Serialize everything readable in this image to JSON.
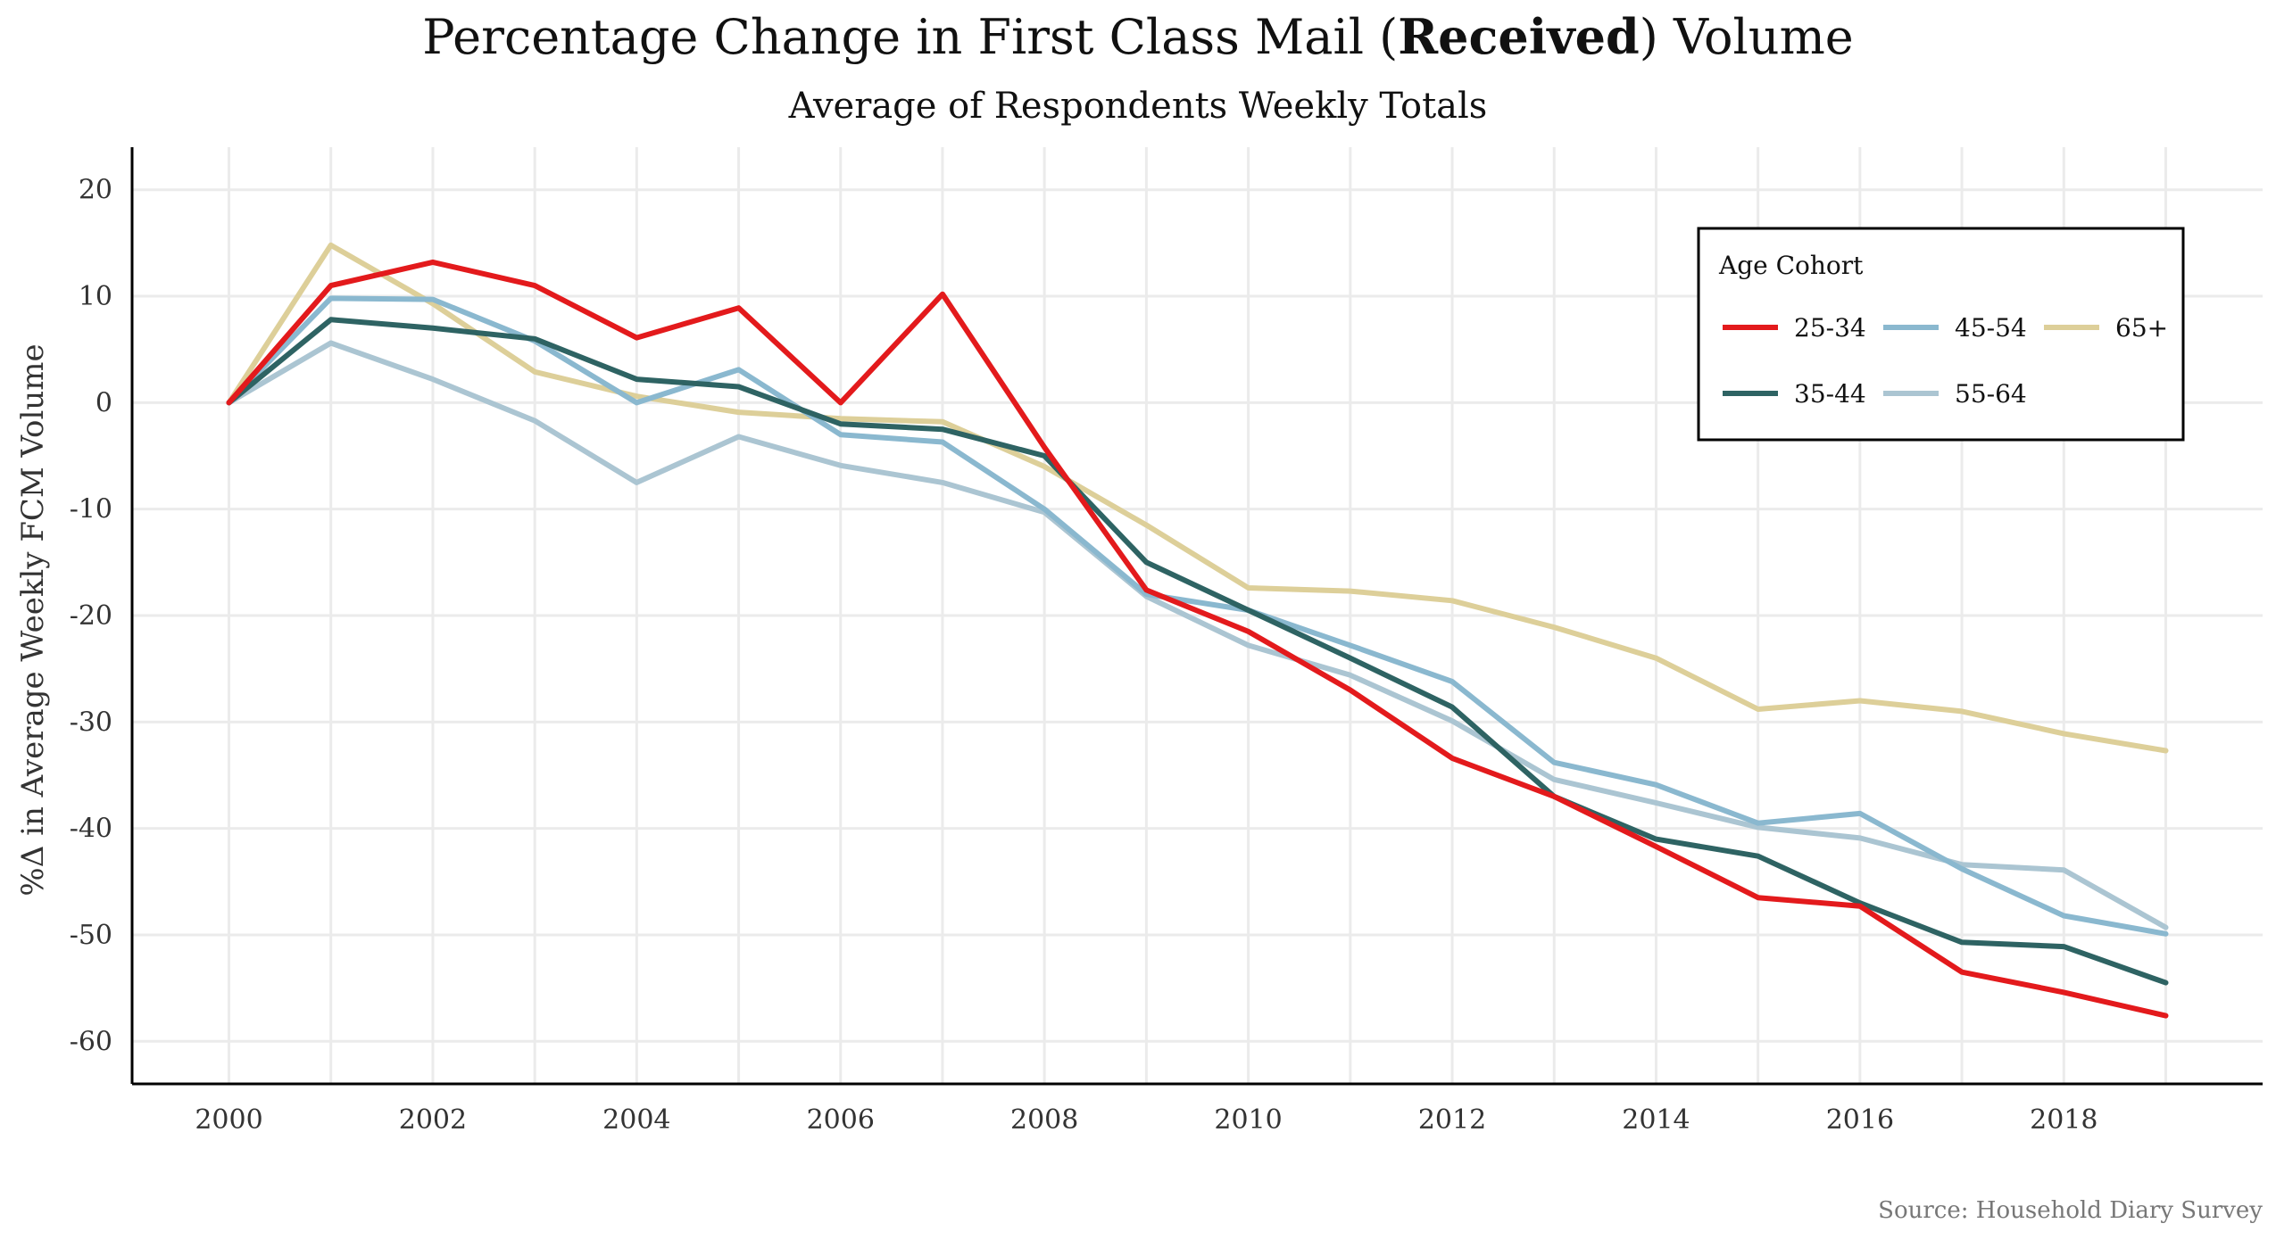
{
  "chart_data": {
    "type": "line",
    "title": {
      "prefix": "Percentage Change in First Class Mail (",
      "bold": "Received",
      "suffix": ") Volume"
    },
    "subtitle": "Average of Respondents Weekly Totals",
    "ylabel": "%Δ in Average Weekly FCM Volume",
    "xlabel": "",
    "caption": "Source: Household Diary Survey",
    "x": [
      2000,
      2001,
      2002,
      2003,
      2004,
      2005,
      2006,
      2007,
      2008,
      2009,
      2010,
      2011,
      2012,
      2013,
      2014,
      2015,
      2016,
      2017,
      2018,
      2019
    ],
    "xlim": [
      1999.05,
      2019.95
    ],
    "ylim": [
      -64,
      24
    ],
    "xticks": [
      "2000",
      "2002",
      "2004",
      "2006",
      "2008",
      "2010",
      "2012",
      "2014",
      "2016",
      "2018"
    ],
    "yticks": [
      "20",
      "10",
      "0",
      "-10",
      "-20",
      "-30",
      "-40",
      "-50",
      "-60"
    ],
    "grid": true,
    "legend": {
      "title": "Age Cohort",
      "placement": "top-right",
      "order": [
        "25-34",
        "45-54",
        "65+",
        "35-44",
        "55-64"
      ]
    },
    "series": [
      {
        "name": "25-34",
        "color": "#e31a1c",
        "values": [
          0,
          11,
          13.2,
          11,
          6.1,
          8.9,
          0,
          10.2,
          -4.2,
          -17.6,
          -21.5,
          -27,
          -33.4,
          -37,
          -41.7,
          -46.5,
          -47.3,
          -53.5,
          -55.4,
          -57.6
        ]
      },
      {
        "name": "35-44",
        "color": "#2e6363",
        "values": [
          0,
          7.8,
          7,
          6,
          2.2,
          1.5,
          -2.0,
          -2.5,
          -5,
          -15,
          -19.5,
          -24,
          -28.6,
          -37,
          -41,
          -42.6,
          -47,
          -50.7,
          -51.1,
          -54.5
        ]
      },
      {
        "name": "45-54",
        "color": "#8ab8cf",
        "values": [
          0,
          9.8,
          9.7,
          5.8,
          0,
          3.1,
          -3,
          -3.7,
          -10,
          -18,
          -19.5,
          -22.8,
          -26.2,
          -33.8,
          -35.9,
          -39.5,
          -38.6,
          -43.8,
          -48.2,
          -49.9
        ]
      },
      {
        "name": "55-64",
        "color": "#abc5d2",
        "values": [
          0,
          5.6,
          2.2,
          -1.7,
          -7.5,
          -3.2,
          -5.9,
          -7.5,
          -10.3,
          -18.2,
          -22.8,
          -25.6,
          -29.9,
          -35.4,
          -37.6,
          -39.9,
          -40.9,
          -43.4,
          -43.9,
          -49.3
        ]
      },
      {
        "name": "65+",
        "color": "#ddcf99",
        "values": [
          0,
          14.8,
          9.3,
          2.9,
          0.6,
          -0.9,
          -1.5,
          -1.8,
          -6,
          -11.5,
          -17.4,
          -17.7,
          -18.6,
          -21.1,
          -24,
          -28.8,
          -28,
          -29,
          -31.1,
          -32.7
        ]
      }
    ]
  }
}
